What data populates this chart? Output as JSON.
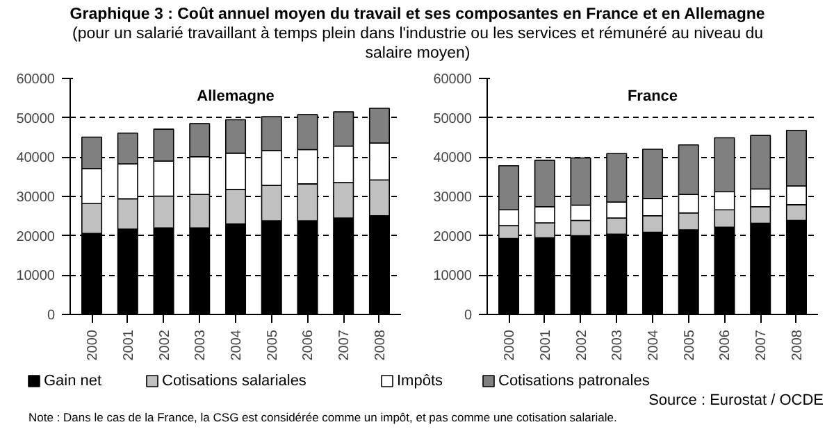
{
  "chart_data": [
    {
      "type": "other",
      "title": "Graphique 3 : Coût annuel moyen du travail et ses composantes en France et en Allemagne",
      "subtitle": "(pour un salarié travaillant à temps plein dans l'industrie ou les services et rémunéré au niveau du salaire moyen)"
    },
    {
      "type": "bar",
      "title": "Allemagne",
      "stacked": true,
      "categories": [
        "2000",
        "2001",
        "2002",
        "2003",
        "2004",
        "2005",
        "2006",
        "2007",
        "2008"
      ],
      "series": [
        {
          "name": "Gain net",
          "color": "#000000",
          "values": [
            20600,
            21700,
            22000,
            22000,
            23000,
            23800,
            23800,
            24500,
            25100
          ]
        },
        {
          "name": "Cotisations salariales",
          "color": "#c0c0c0",
          "values": [
            7600,
            7700,
            8100,
            8500,
            8800,
            9000,
            9400,
            9000,
            9100
          ]
        },
        {
          "name": "Impôts",
          "color": "#ffffff",
          "values": [
            8900,
            8900,
            8900,
            9600,
            9200,
            8900,
            8700,
            9300,
            9400
          ]
        },
        {
          "name": "Cotisations patronales",
          "color": "#808080",
          "values": [
            8000,
            7800,
            8100,
            8400,
            8500,
            8600,
            8900,
            8700,
            8800
          ]
        }
      ],
      "ylim": [
        0,
        60000
      ],
      "yticks": [
        0,
        10000,
        20000,
        30000,
        40000,
        50000,
        60000
      ],
      "grid": "y",
      "legend": "bottom",
      "annotations": [
        "Note : Dans le cas de la France, la CSG est considérée comme un impôt, et pas comme une cotisation salariale."
      ]
    },
    {
      "type": "bar",
      "title": "France",
      "stacked": true,
      "categories": [
        "2000",
        "2001",
        "2002",
        "2003",
        "2004",
        "2005",
        "2006",
        "2007",
        "2008"
      ],
      "series": [
        {
          "color": "#000000",
          "values": [
            19300,
            19500,
            20000,
            20400,
            20900,
            21500,
            22200,
            23200,
            23900
          ]
        },
        {
          "color": "#c0c0c0",
          "values": [
            3300,
            3800,
            3900,
            4100,
            4200,
            4300,
            4400,
            4200,
            4000
          ]
        },
        {
          "color": "#ffffff",
          "values": [
            4000,
            4100,
            3900,
            4100,
            4400,
            4700,
            4600,
            4500,
            4800
          ]
        },
        {
          "color": "#808080",
          "values": [
            11200,
            11800,
            12000,
            12300,
            12500,
            12600,
            13700,
            13600,
            14100
          ]
        }
      ],
      "ylim": [
        0,
        60000
      ],
      "yticks": [
        0,
        10000,
        20000,
        30000,
        40000,
        50000,
        60000
      ],
      "grid": "y",
      "annotations": [
        "Source : Eurostat / OCDE"
      ]
    }
  ]
}
